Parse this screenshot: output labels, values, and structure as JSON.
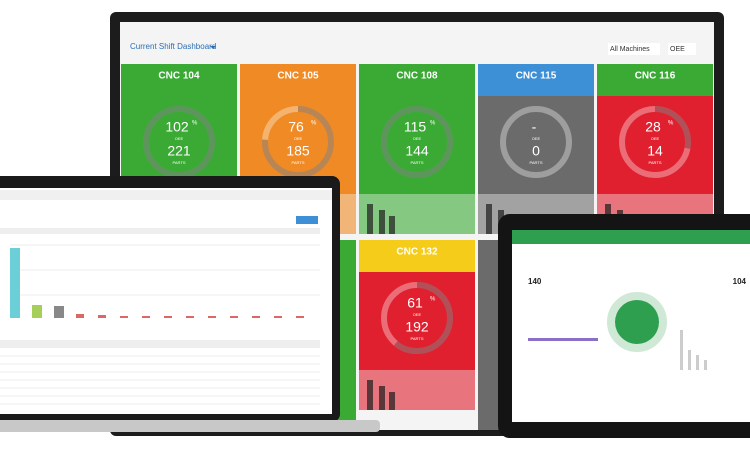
{
  "monitor": {
    "title": "Current Shift Dashboard",
    "filters": [
      "All Machines",
      "OEE"
    ],
    "ring_labels": [
      "OEE",
      "PARTS"
    ],
    "tiles": [
      {
        "name": "CNC 104",
        "oee": 102,
        "unit": "%",
        "parts": 221,
        "header_color": "#3aaa35",
        "body_color": "#3aaa35"
      },
      {
        "name": "CNC 105",
        "oee": 76,
        "unit": "%",
        "parts": 185,
        "header_color": "#f08a24",
        "body_color": "#f08a24"
      },
      {
        "name": "CNC 108",
        "oee": 115,
        "unit": "%",
        "parts": 144,
        "header_color": "#3aaa35",
        "body_color": "#3aaa35"
      },
      {
        "name": "CNC 115",
        "oee": "-",
        "unit": "",
        "parts": 0,
        "header_color": "#3d8fd6",
        "body_color": "#6b6b6b"
      },
      {
        "name": "CNC 116",
        "oee": 28,
        "unit": "%",
        "parts": 14,
        "header_color": "#3aaa35",
        "body_color": "#e0202e"
      },
      {
        "name": "CNC 132",
        "oee": 61,
        "unit": "%",
        "parts": 192,
        "header_color": "#f5cc1a",
        "body_color": "#e0202e"
      }
    ]
  },
  "tablet": {
    "left_value": 140,
    "right_value": 104
  }
}
